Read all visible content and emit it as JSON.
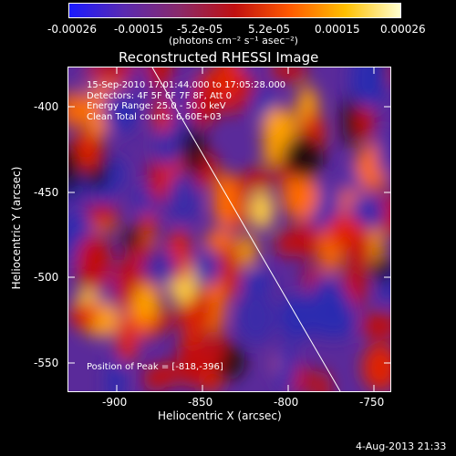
{
  "colorbar": {
    "tick_labels": [
      "-0.00026",
      "-0.00015",
      "-5.2e-05",
      "5.2e-05",
      "0.00015",
      "0.00026"
    ],
    "units": "(photons cm⁻² s⁻¹ asec⁻²)",
    "colors": [
      "#1a1aff",
      "#5a2ab0",
      "#8a2a6a",
      "#c01010",
      "#ff5a00",
      "#ffc000",
      "#ffffd0"
    ]
  },
  "plot": {
    "title": "Reconstructed RHESSI Image",
    "xlabel": "Heliocentric X (arcsec)",
    "ylabel": "Heliocentric Y (arcsec)",
    "x_ticks": [
      "-900",
      "-850",
      "-800",
      "-750"
    ],
    "y_ticks": [
      "-400",
      "-450",
      "-500",
      "-550"
    ],
    "info_lines": [
      "15-Sep-2010 17:01:44.000 to 17:05:28.000",
      "Detectors: 4F 5F 6F 7F 8F, Att 0",
      "Energy Range: 25.0 - 50.0 keV",
      "Clean     Total counts: 6.60E+03"
    ],
    "peak_text": "Position of Peak = [-818,-396]"
  },
  "footer": {
    "timestamp": "4-Aug-2013 21:33"
  }
}
